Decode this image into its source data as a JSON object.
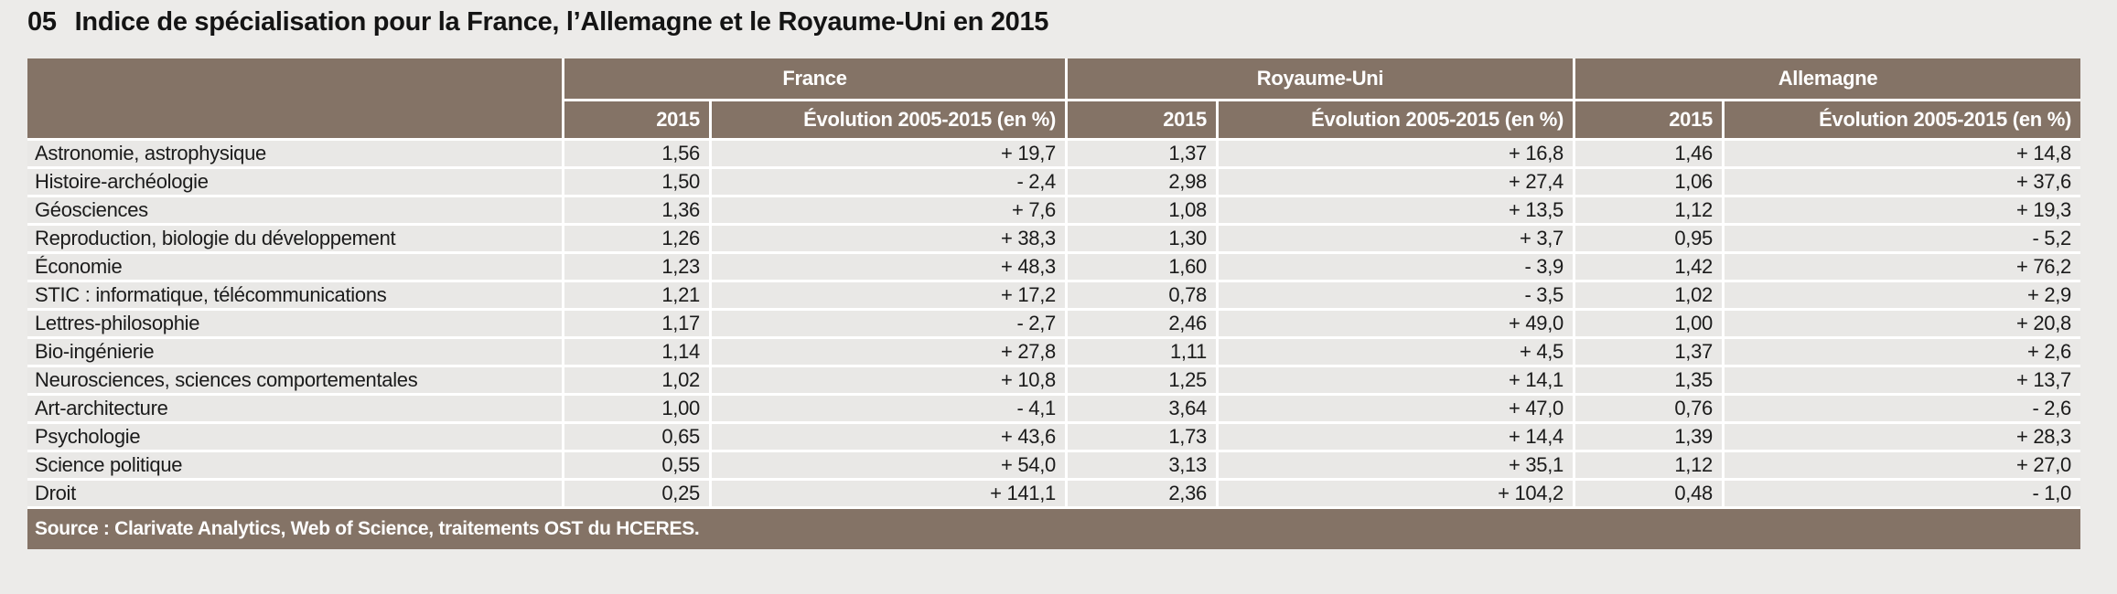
{
  "title": {
    "number": "05",
    "text": "Indice de spécialisation pour la France, l’Allemagne et le Royaume-Uni en 2015"
  },
  "table": {
    "colors": {
      "header_bg": "#847366",
      "row_bg": "#E9E8E6",
      "header_text": "#FFFFFF",
      "body_text": "#1B1B1B",
      "page_bg": "#ECEBE9"
    },
    "groups": [
      {
        "label": "France"
      },
      {
        "label": "Royaume-Uni"
      },
      {
        "label": "Allemagne"
      }
    ],
    "subheaders": {
      "year": "2015",
      "evolution": "Évolution 2005-2015 (en %)"
    },
    "rows": [
      {
        "discipline": "Astronomie, astrophysique",
        "fr_2015": "1,56",
        "fr_evo": "+ 19,7",
        "uk_2015": "1,37",
        "uk_evo": "+ 16,8",
        "de_2015": "1,46",
        "de_evo": "+ 14,8"
      },
      {
        "discipline": "Histoire-archéologie",
        "fr_2015": "1,50",
        "fr_evo": "- 2,4",
        "uk_2015": "2,98",
        "uk_evo": "+ 27,4",
        "de_2015": "1,06",
        "de_evo": "+ 37,6"
      },
      {
        "discipline": "Géosciences",
        "fr_2015": "1,36",
        "fr_evo": "+ 7,6",
        "uk_2015": "1,08",
        "uk_evo": "+ 13,5",
        "de_2015": "1,12",
        "de_evo": "+ 19,3"
      },
      {
        "discipline": "Reproduction, biologie du développement",
        "fr_2015": "1,26",
        "fr_evo": "+ 38,3",
        "uk_2015": "1,30",
        "uk_evo": "+ 3,7",
        "de_2015": "0,95",
        "de_evo": "- 5,2"
      },
      {
        "discipline": "Économie",
        "fr_2015": "1,23",
        "fr_evo": "+ 48,3",
        "uk_2015": "1,60",
        "uk_evo": "- 3,9",
        "de_2015": "1,42",
        "de_evo": "+ 76,2"
      },
      {
        "discipline": "STIC : informatique, télécommunications",
        "fr_2015": "1,21",
        "fr_evo": "+ 17,2",
        "uk_2015": "0,78",
        "uk_evo": "- 3,5",
        "de_2015": "1,02",
        "de_evo": "+ 2,9"
      },
      {
        "discipline": "Lettres-philosophie",
        "fr_2015": "1,17",
        "fr_evo": "- 2,7",
        "uk_2015": "2,46",
        "uk_evo": "+ 49,0",
        "de_2015": "1,00",
        "de_evo": "+ 20,8"
      },
      {
        "discipline": "Bio-ingénierie",
        "fr_2015": "1,14",
        "fr_evo": "+ 27,8",
        "uk_2015": "1,11",
        "uk_evo": "+ 4,5",
        "de_2015": "1,37",
        "de_evo": "+ 2,6"
      },
      {
        "discipline": "Neurosciences, sciences comportementales",
        "fr_2015": "1,02",
        "fr_evo": "+ 10,8",
        "uk_2015": "1,25",
        "uk_evo": "+ 14,1",
        "de_2015": "1,35",
        "de_evo": "+ 13,7"
      },
      {
        "discipline": "Art-architecture",
        "fr_2015": "1,00",
        "fr_evo": "- 4,1",
        "uk_2015": "3,64",
        "uk_evo": "+ 47,0",
        "de_2015": "0,76",
        "de_evo": "- 2,6"
      },
      {
        "discipline": "Psychologie",
        "fr_2015": "0,65",
        "fr_evo": "+ 43,6",
        "uk_2015": "1,73",
        "uk_evo": "+ 14,4",
        "de_2015": "1,39",
        "de_evo": "+ 28,3"
      },
      {
        "discipline": "Science politique",
        "fr_2015": "0,55",
        "fr_evo": "+ 54,0",
        "uk_2015": "3,13",
        "uk_evo": "+ 35,1",
        "de_2015": "1,12",
        "de_evo": "+ 27,0"
      },
      {
        "discipline": "Droit",
        "fr_2015": "0,25",
        "fr_evo": "+ 141,1",
        "uk_2015": "2,36",
        "uk_evo": "+ 104,2",
        "de_2015": "0,48",
        "de_evo": "- 1,0"
      }
    ],
    "source": "Source : Clarivate Analytics, Web of Science, traitements OST du HCERES."
  }
}
